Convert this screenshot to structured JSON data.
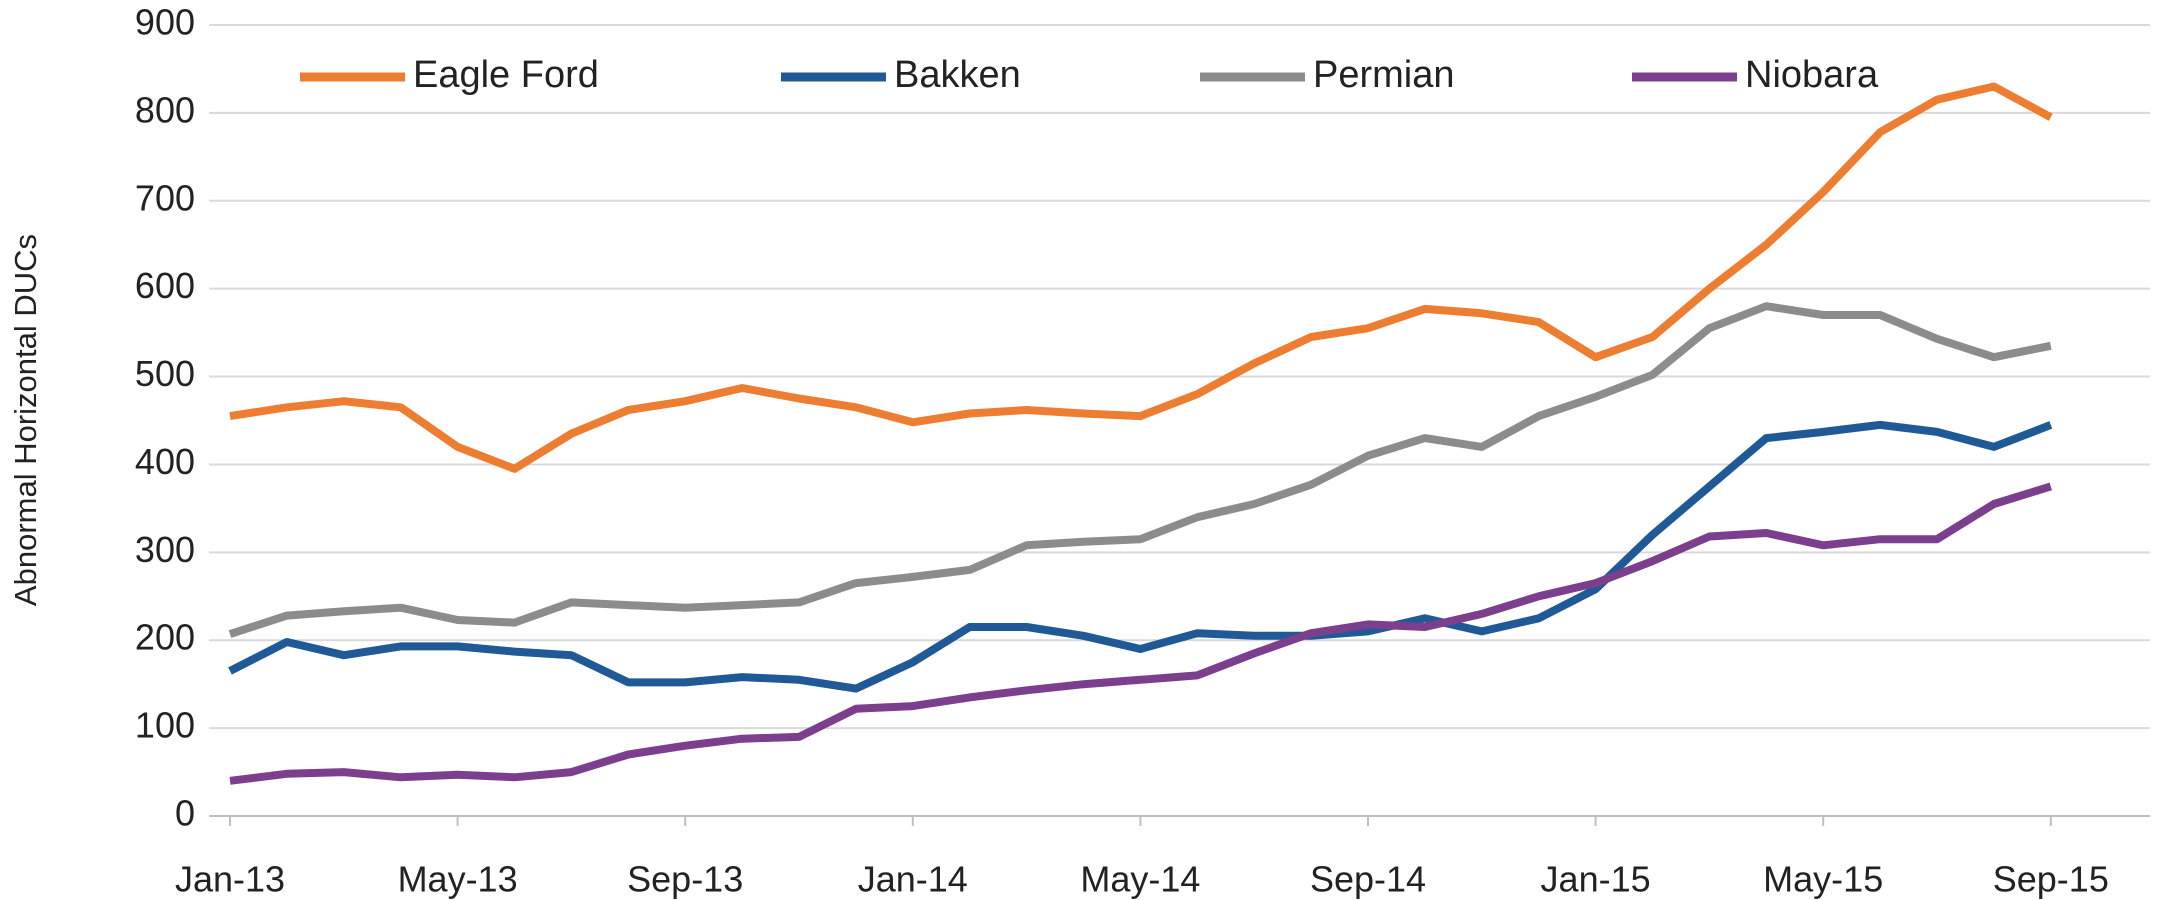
{
  "chart_data": {
    "type": "line",
    "ylabel": "Abnormal Horizontal DUCs",
    "categories": [
      "Jan-13",
      null,
      null,
      null,
      "May-13",
      null,
      null,
      null,
      "Sep-13",
      null,
      null,
      null,
      "Jan-14",
      null,
      null,
      null,
      "May-14",
      null,
      null,
      null,
      "Sep-14",
      null,
      null,
      null,
      "Jan-15",
      null,
      null,
      null,
      "May-15",
      null,
      null,
      null,
      "Sep-15"
    ],
    "series": [
      {
        "name": "Eagle Ford",
        "color": "#ed7d31",
        "values": [
          455,
          465,
          472,
          465,
          420,
          395,
          435,
          462,
          472,
          487,
          475,
          465,
          448,
          458,
          462,
          458,
          455,
          480,
          515,
          545,
          555,
          577,
          572,
          562,
          522,
          545,
          600,
          650,
          710,
          778,
          815,
          830,
          795
        ]
      },
      {
        "name": "Bakken",
        "color": "#1f5a96",
        "values": [
          165,
          198,
          183,
          193,
          193,
          187,
          183,
          152,
          152,
          158,
          155,
          145,
          175,
          215,
          215,
          205,
          190,
          208,
          205,
          205,
          210,
          225,
          210,
          225,
          258,
          320,
          375,
          430,
          437,
          445,
          437,
          420,
          445
        ]
      },
      {
        "name": "Permian",
        "color": "#8c8c8c",
        "values": [
          207,
          228,
          233,
          237,
          223,
          220,
          243,
          240,
          237,
          240,
          243,
          265,
          272,
          280,
          308,
          312,
          315,
          340,
          355,
          377,
          410,
          430,
          420,
          455,
          477,
          502,
          555,
          580,
          570,
          570,
          543,
          522,
          535
        ]
      },
      {
        "name": "Niobara",
        "color": "#7b3f8e",
        "values": [
          40,
          48,
          50,
          44,
          47,
          44,
          50,
          70,
          80,
          88,
          90,
          122,
          125,
          135,
          143,
          150,
          155,
          160,
          185,
          208,
          218,
          215,
          230,
          250,
          265,
          290,
          318,
          322,
          308,
          315,
          315,
          355,
          375
        ]
      }
    ],
    "ylim": [
      0,
      900
    ],
    "yticks": [
      0,
      100,
      200,
      300,
      400,
      500,
      600,
      700,
      800,
      900
    ],
    "grid": true,
    "legend": "top"
  }
}
